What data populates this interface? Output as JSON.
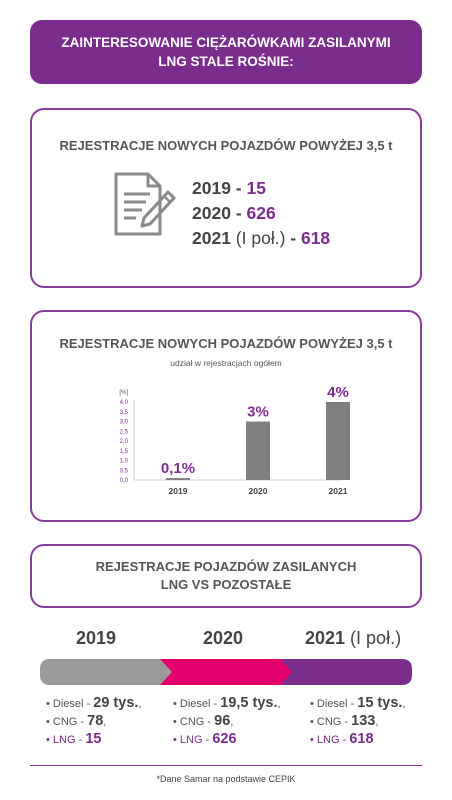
{
  "banner": {
    "line1": "ZAINTERESOWANIE CIĘŻARÓWKAMI ZASILANYMI",
    "line2": "LNG STALE ROŚNIE:"
  },
  "registrations": {
    "title": "REJESTRACJE NOWYCH POJAZDÓW POWYŻEJ 3,5 t",
    "icon": "document-pen-icon",
    "rows": [
      {
        "year": "2019",
        "sep": " - ",
        "value": "15",
        "note": ""
      },
      {
        "year": "2020",
        "sep": " - ",
        "value": "626",
        "note": ""
      },
      {
        "year": "2021",
        "sep": " - ",
        "value": "618",
        "note": " (I poł.)"
      }
    ]
  },
  "share_chart": {
    "title": "REJESTRACJE NOWYCH POJAZDÓW POWYŻEJ 3,5 t",
    "subtitle": "udział w rejestracjach ogółem"
  },
  "chart_data": {
    "type": "bar",
    "title": "REJESTRACJE NOWYCH POJAZDÓW POWYŻEJ 3,5 t",
    "subtitle": "udział w rejestracjach ogółem",
    "categories": [
      "2019",
      "2020",
      "2021"
    ],
    "values": [
      0.1,
      3,
      4
    ],
    "data_labels": [
      "0,1%",
      "3%",
      "4%"
    ],
    "ylabel": "[%]",
    "ylim": [
      0,
      4
    ],
    "y_ticks": [
      "0,0",
      "0,5",
      "1,0",
      "1,5",
      "2,0",
      "2,5",
      "3,0",
      "3,5",
      "4,0"
    ],
    "bar_color": "#808080",
    "label_color": "#7b2d8e",
    "grid": false
  },
  "comparison": {
    "title_line1": "REJESTRACJE POJAZDÓW ZASILANYCH",
    "title_line2": "LNG VS POZOSTAŁE",
    "periods": [
      {
        "year": "2019",
        "note": "",
        "color": "#9b9b9b",
        "diesel": "29 tys.",
        "diesel_suffix": ",",
        "cng": "78",
        "cng_suffix": ",",
        "lng": "15"
      },
      {
        "year": "2020",
        "note": "",
        "color": "#e5006d",
        "diesel": "19,5 tys.",
        "diesel_suffix": ",",
        "cng": "96",
        "cng_suffix": ",",
        "lng": "626"
      },
      {
        "year": "2021",
        "note": " (I poł.)",
        "color": "#7b2d8e",
        "diesel": "15 tys.",
        "diesel_suffix": ",",
        "cng": "133",
        "cng_suffix": ",",
        "lng": "618"
      }
    ],
    "labels": {
      "diesel": "Diesel - ",
      "cng": "CNG - ",
      "lng": "LNG - ",
      "bullet": "• "
    }
  },
  "footnote": "*Dane Samar na podstawie CEPIK",
  "colors": {
    "purple": "#7b2d8e",
    "magenta": "#e5006d",
    "grey": "#9b9b9b",
    "bar": "#808080"
  }
}
